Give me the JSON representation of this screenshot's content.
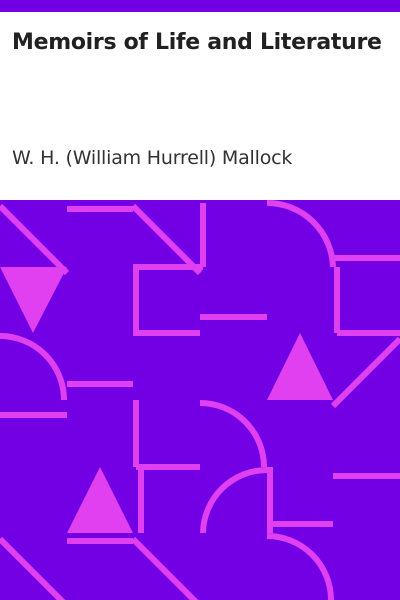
{
  "book": {
    "title": "Memoirs of Life and Literature",
    "author": "W. H. (William Hurrell) Mallock"
  },
  "colors": {
    "accent": "#7300e5",
    "background": "#7300e5",
    "pattern_fill": "#e040f0",
    "pattern_stroke": "#e040f0",
    "title_text": "#212121",
    "author_text": "#333333",
    "page": "#ffffff"
  }
}
